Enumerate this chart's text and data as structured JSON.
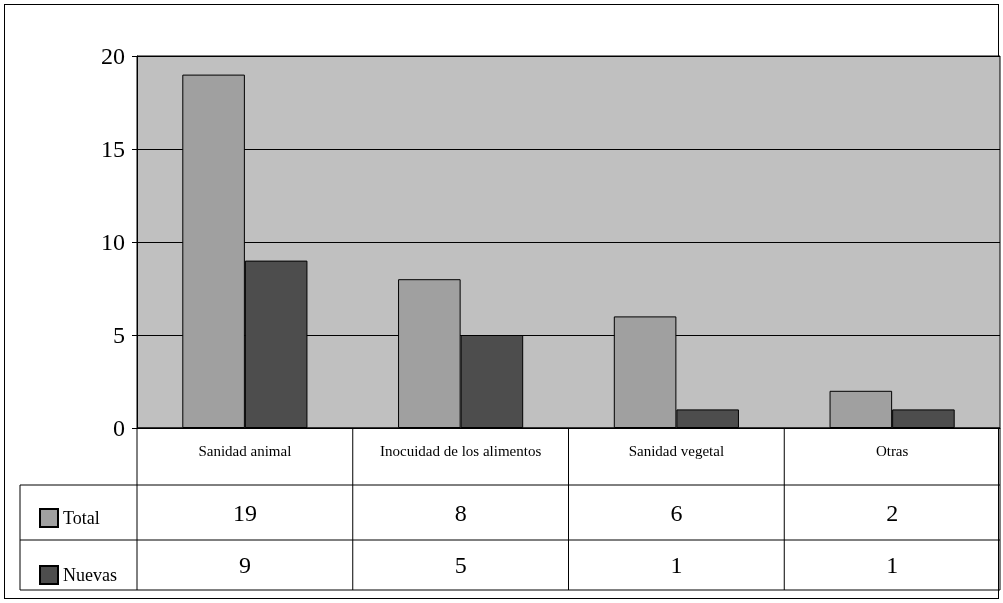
{
  "chart_data": {
    "type": "bar",
    "categories": [
      "Sanidad animal",
      "Inocuidad de los alimentos",
      "Sanidad vegetal",
      "Otras"
    ],
    "series": [
      {
        "name": "Total",
        "color": "#a0a0a0",
        "values": [
          19,
          8,
          6,
          2
        ]
      },
      {
        "name": "Nuevas",
        "color": "#4d4d4d",
        "values": [
          9,
          5,
          1,
          1
        ]
      }
    ],
    "ylim": [
      0,
      20
    ],
    "yticks": [
      0,
      5,
      10,
      15,
      20
    ],
    "grid": "y",
    "legend": "bottom left",
    "data_labels": true
  }
}
